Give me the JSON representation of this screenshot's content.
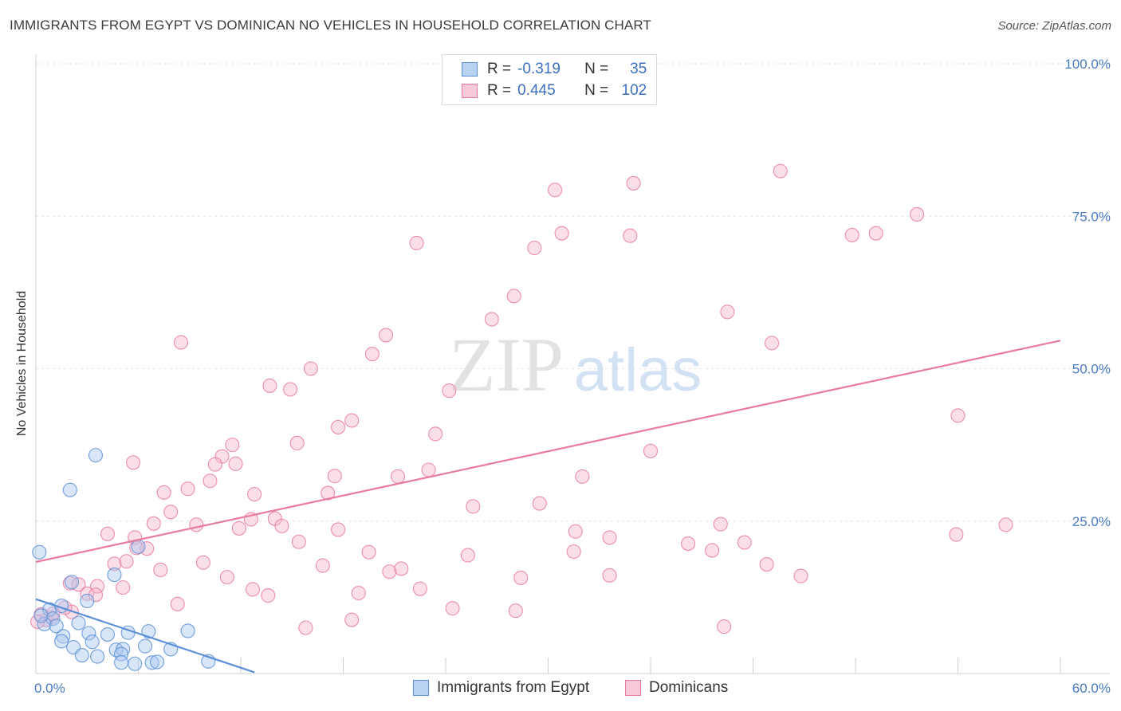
{
  "title": "IMMIGRANTS FROM EGYPT VS DOMINICAN NO VEHICLES IN HOUSEHOLD CORRELATION CHART",
  "source": "Source: ZipAtlas.com",
  "watermark": {
    "zip": "ZIP",
    "atlas": "atlas"
  },
  "legend": {
    "rows": [
      {
        "r_label": "R =",
        "r_value": "-0.319",
        "n_label": "N =",
        "n_value": "35",
        "color": "#5b8fd6"
      },
      {
        "r_label": "R =",
        "r_value": "0.445",
        "n_label": "N =",
        "n_value": "102",
        "color": "#e97aa3"
      }
    ]
  },
  "bottom_legend": {
    "egypt": "Immigrants from Egypt",
    "dominicans": "Dominicans"
  },
  "chart_data": {
    "type": "scatter",
    "title": "IMMIGRANTS FROM EGYPT VS DOMINICAN NO VEHICLES IN HOUSEHOLD CORRELATION CHART",
    "xlabel": "",
    "ylabel": "No Vehicles in Household",
    "xlim": [
      0,
      60
    ],
    "ylim": [
      0,
      100
    ],
    "x_tick_labels": [
      "0.0%",
      "60.0%"
    ],
    "y_tick_labels": [
      "100.0%",
      "75.0%",
      "50.0%",
      "25.0%"
    ],
    "y_ticks": [
      100,
      75,
      50,
      25
    ],
    "grid": true,
    "series": [
      {
        "name": "Immigrants from Egypt",
        "color": "#5b8fd6",
        "fill": "#a9c7ef",
        "R": -0.319,
        "N": 35,
        "trend": {
          "x": [
            0,
            12.8
          ],
          "y": [
            12.2,
            0.2
          ]
        },
        "points": [
          [
            0.2,
            19.9
          ],
          [
            3.5,
            35.8
          ],
          [
            2.0,
            30.1
          ],
          [
            6.0,
            20.8
          ],
          [
            4.6,
            16.2
          ],
          [
            2.1,
            15.0
          ],
          [
            3.0,
            11.9
          ],
          [
            0.8,
            10.5
          ],
          [
            1.5,
            11.1
          ],
          [
            1.0,
            9.0
          ],
          [
            0.5,
            8.1
          ],
          [
            1.2,
            7.8
          ],
          [
            2.5,
            8.3
          ],
          [
            1.6,
            6.1
          ],
          [
            3.1,
            6.6
          ],
          [
            4.2,
            6.4
          ],
          [
            5.4,
            6.7
          ],
          [
            6.6,
            6.9
          ],
          [
            8.9,
            7.0
          ],
          [
            1.5,
            5.3
          ],
          [
            3.3,
            5.2
          ],
          [
            2.2,
            4.3
          ],
          [
            4.7,
            3.9
          ],
          [
            5.1,
            4.0
          ],
          [
            6.4,
            4.5
          ],
          [
            7.9,
            4.0
          ],
          [
            2.7,
            3.0
          ],
          [
            3.6,
            2.8
          ],
          [
            5.0,
            3.2
          ],
          [
            5.0,
            1.8
          ],
          [
            5.8,
            1.6
          ],
          [
            6.8,
            1.8
          ],
          [
            7.1,
            1.9
          ],
          [
            10.1,
            2.0
          ],
          [
            0.3,
            9.5
          ]
        ]
      },
      {
        "name": "Dominicans",
        "color": "#e97aa3",
        "fill": "#f5b9cf",
        "R": 0.445,
        "N": 102,
        "trend": {
          "x": [
            0,
            60
          ],
          "y": [
            18.3,
            54.6
          ]
        },
        "points": [
          [
            43.6,
            82.4
          ],
          [
            35.0,
            80.4
          ],
          [
            30.4,
            79.3
          ],
          [
            51.6,
            75.3
          ],
          [
            30.8,
            72.2
          ],
          [
            34.8,
            71.8
          ],
          [
            47.8,
            71.9
          ],
          [
            49.2,
            72.2
          ],
          [
            22.3,
            70.6
          ],
          [
            29.2,
            69.8
          ],
          [
            28.0,
            61.9
          ],
          [
            26.7,
            58.1
          ],
          [
            40.5,
            59.3
          ],
          [
            8.5,
            54.3
          ],
          [
            20.5,
            55.5
          ],
          [
            43.1,
            54.2
          ],
          [
            19.7,
            52.4
          ],
          [
            16.1,
            50.0
          ],
          [
            13.7,
            47.2
          ],
          [
            14.9,
            46.6
          ],
          [
            24.2,
            46.4
          ],
          [
            18.5,
            41.5
          ],
          [
            17.7,
            40.4
          ],
          [
            23.4,
            39.3
          ],
          [
            54.0,
            42.3
          ],
          [
            15.3,
            37.8
          ],
          [
            11.5,
            37.5
          ],
          [
            36.0,
            36.5
          ],
          [
            5.7,
            34.6
          ],
          [
            10.9,
            35.6
          ],
          [
            10.5,
            34.3
          ],
          [
            11.7,
            34.4
          ],
          [
            23.0,
            33.4
          ],
          [
            17.5,
            32.4
          ],
          [
            21.2,
            32.3
          ],
          [
            32.0,
            32.3
          ],
          [
            10.2,
            31.6
          ],
          [
            7.5,
            29.7
          ],
          [
            8.9,
            30.3
          ],
          [
            12.8,
            29.4
          ],
          [
            17.1,
            29.6
          ],
          [
            29.5,
            27.9
          ],
          [
            25.6,
            27.4
          ],
          [
            7.9,
            26.5
          ],
          [
            14.0,
            25.4
          ],
          [
            12.6,
            25.3
          ],
          [
            6.9,
            24.6
          ],
          [
            9.4,
            24.4
          ],
          [
            11.9,
            23.8
          ],
          [
            14.4,
            24.2
          ],
          [
            17.7,
            23.6
          ],
          [
            31.6,
            23.3
          ],
          [
            40.1,
            24.5
          ],
          [
            56.8,
            24.4
          ],
          [
            53.9,
            22.8
          ],
          [
            4.2,
            22.9
          ],
          [
            5.8,
            22.3
          ],
          [
            15.4,
            21.6
          ],
          [
            33.6,
            22.3
          ],
          [
            38.2,
            21.3
          ],
          [
            41.5,
            21.5
          ],
          [
            6.5,
            20.5
          ],
          [
            5.9,
            20.6
          ],
          [
            19.5,
            19.9
          ],
          [
            25.3,
            19.4
          ],
          [
            31.5,
            20.0
          ],
          [
            39.6,
            20.2
          ],
          [
            4.6,
            18.0
          ],
          [
            5.3,
            18.4
          ],
          [
            9.8,
            18.2
          ],
          [
            16.8,
            17.7
          ],
          [
            42.8,
            17.9
          ],
          [
            7.3,
            17.0
          ],
          [
            20.7,
            16.7
          ],
          [
            21.4,
            17.2
          ],
          [
            11.2,
            15.8
          ],
          [
            28.4,
            15.7
          ],
          [
            33.6,
            16.1
          ],
          [
            44.8,
            16.0
          ],
          [
            2.0,
            14.8
          ],
          [
            2.5,
            14.6
          ],
          [
            3.6,
            14.3
          ],
          [
            5.1,
            14.1
          ],
          [
            12.7,
            13.8
          ],
          [
            22.5,
            13.9
          ],
          [
            18.9,
            13.2
          ],
          [
            3.0,
            13.1
          ],
          [
            3.5,
            12.9
          ],
          [
            13.6,
            12.8
          ],
          [
            8.3,
            11.4
          ],
          [
            24.4,
            10.7
          ],
          [
            28.1,
            10.3
          ],
          [
            2.1,
            10.1
          ],
          [
            1.7,
            10.8
          ],
          [
            0.9,
            9.2
          ],
          [
            0.6,
            8.8
          ],
          [
            18.5,
            8.8
          ],
          [
            15.8,
            7.5
          ],
          [
            40.3,
            7.7
          ],
          [
            1.0,
            9.8
          ],
          [
            0.3,
            9.7
          ],
          [
            0.1,
            8.5
          ]
        ]
      }
    ]
  }
}
